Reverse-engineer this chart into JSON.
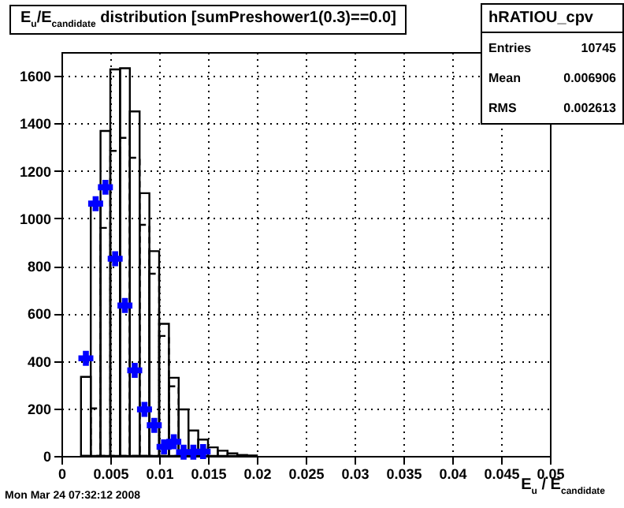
{
  "chart_data": {
    "type": "histogram",
    "title": "E$_{u}$/E$_{candidate}$ distribution [sumPreshower1(0.3)==0.0]",
    "xlabel": "E$_{u}$ / E$_{candidate}$",
    "bins": [
      0.002,
      0.003,
      0.004,
      0.005,
      0.006,
      0.007,
      0.008,
      0.009,
      0.01,
      0.011,
      0.012,
      0.013,
      0.014,
      0.015,
      0.016,
      0.017,
      0.018,
      0.019,
      0.02
    ],
    "series": [
      {
        "color": "#000000",
        "line_style": "solid",
        "values": [
          333,
          1062,
          1368,
          1627,
          1632,
          1450,
          1106,
          862,
          556,
          329,
          196,
          107,
          69,
          36,
          22,
          11,
          4,
          2
        ]
      },
      {
        "color": "#000000",
        "line_style": "dashed",
        "values": [
          0,
          200,
          960,
          1284,
          1339,
          1255,
          973,
          767,
          505,
          293,
          null,
          null,
          null,
          null,
          null,
          null,
          null,
          null
        ]
      },
      {
        "type": "scatter",
        "color": "#0000ff",
        "marker": "cross",
        "x": [
          0.0025,
          0.0035,
          0.0045,
          0.0055,
          0.0065,
          0.0075,
          0.0085,
          0.0095,
          0.0105,
          0.0115,
          0.0125,
          0.0135,
          0.0145
        ],
        "values": [
          411,
          1062,
          1131,
          830,
          633,
          360,
          196,
          129,
          38,
          60,
          16,
          16,
          18
        ]
      }
    ],
    "xlim": [
      0,
      0.05
    ],
    "xticks": [
      0,
      0.005,
      0.01,
      0.015,
      0.02,
      0.025,
      0.03,
      0.035,
      0.04,
      0.045,
      0.05
    ],
    "ylim": [
      0,
      1700
    ],
    "yticks": [
      0,
      200,
      400,
      600,
      800,
      1000,
      1200,
      1400,
      1600
    ],
    "grid": true,
    "annotations": [
      "hRATIOU_cpv",
      "Entries",
      "10745",
      "Mean",
      "0.006906",
      "RMS",
      "0.002613",
      "Mon Mar 24 07:32:12 2008"
    ]
  }
}
